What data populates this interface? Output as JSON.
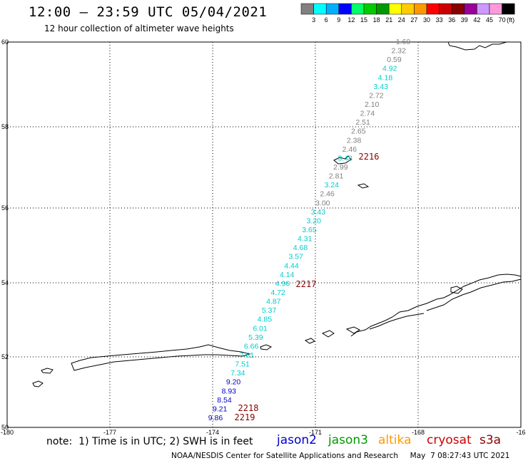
{
  "title": "12:00 – 23:59 UTC 05/04/2021",
  "subtitle": "12 hour collection of altimeter wave heights",
  "note": "note:  1) Time is in UTC; 2) SWH is in feet",
  "credit": "NOAA/NESDIS Center for Satellite Applications and Research     May  7 08:27:43 UTC 2021",
  "satellites": [
    {
      "name": "jason2",
      "color": "#0000cc"
    },
    {
      "name": "jason3",
      "color": "#009900"
    },
    {
      "name": "altika",
      "color": "#ff9900"
    },
    {
      "name": "cryosat",
      "color": "#cc0000"
    },
    {
      "name": "s3a",
      "color": "#880000"
    }
  ],
  "colorbar": {
    "unit": "(ft)",
    "ticks": [
      "3",
      "6",
      "9",
      "12",
      "15",
      "18",
      "21",
      "24",
      "27",
      "30",
      "33",
      "36",
      "39",
      "42",
      "45",
      "70"
    ],
    "colors": [
      "#808080",
      "#00ffff",
      "#00b0ff",
      "#0000ff",
      "#00ff66",
      "#00cc00",
      "#009900",
      "#ffff00",
      "#ffcc00",
      "#ff9900",
      "#ff0000",
      "#cc0000",
      "#880000",
      "#990099",
      "#cc99ff",
      "#ff99dd",
      "#000000"
    ]
  },
  "axes": {
    "lon_labels": [
      "-180",
      "-177",
      "-174",
      "-171",
      "-168",
      "-16"
    ],
    "lat_labels": [
      "50",
      "52",
      "54",
      "56",
      "58",
      "60"
    ]
  },
  "pass_times": [
    "2216",
    "2217",
    "2218",
    "2219"
  ],
  "swh_labels": [
    {
      "value": "1.60",
      "color": "#808080"
    },
    {
      "value": "2.32",
      "color": "#808080"
    },
    {
      "value": "0.59",
      "color": "#808080"
    },
    {
      "value": "4.92",
      "color": "#00cccc"
    },
    {
      "value": "4.18",
      "color": "#00cccc"
    },
    {
      "value": "3.43",
      "color": "#00cccc"
    },
    {
      "value": "2.72",
      "color": "#808080"
    },
    {
      "value": "2.10",
      "color": "#808080"
    },
    {
      "value": "2.74",
      "color": "#808080"
    },
    {
      "value": "2.51",
      "color": "#808080"
    },
    {
      "value": "2.65",
      "color": "#808080"
    },
    {
      "value": "2.38",
      "color": "#808080"
    },
    {
      "value": "2.46",
      "color": "#808080"
    },
    {
      "value": "3.48",
      "color": "#00cccc"
    },
    {
      "value": "2.99",
      "color": "#808080"
    },
    {
      "value": "2.81",
      "color": "#808080"
    },
    {
      "value": "3.24",
      "color": "#00cccc"
    },
    {
      "value": "2.46",
      "color": "#808080"
    },
    {
      "value": "3.00",
      "color": "#808080"
    },
    {
      "value": "3.43",
      "color": "#00cccc"
    },
    {
      "value": "3.20",
      "color": "#00cccc"
    },
    {
      "value": "3.65",
      "color": "#00cccc"
    },
    {
      "value": "4.31",
      "color": "#00cccc"
    },
    {
      "value": "4.68",
      "color": "#00cccc"
    },
    {
      "value": "3.57",
      "color": "#00cccc"
    },
    {
      "value": "4.44",
      "color": "#00cccc"
    },
    {
      "value": "4.14",
      "color": "#00cccc"
    },
    {
      "value": "4.96",
      "color": "#00cccc"
    },
    {
      "value": "4.72",
      "color": "#00cccc"
    },
    {
      "value": "4.87",
      "color": "#00cccc"
    },
    {
      "value": "5.37",
      "color": "#00cccc"
    },
    {
      "value": "4.85",
      "color": "#00cccc"
    },
    {
      "value": "6.01",
      "color": "#00cccc"
    },
    {
      "value": "5.39",
      "color": "#00cccc"
    },
    {
      "value": "6.66",
      "color": "#00cccc"
    },
    {
      "value": "7.81",
      "color": "#00cccc"
    },
    {
      "value": "7.51",
      "color": "#00cccc"
    },
    {
      "value": "7.34",
      "color": "#00cccc"
    },
    {
      "value": "9.20",
      "color": "#0000cc"
    },
    {
      "value": "8.93",
      "color": "#0000cc"
    },
    {
      "value": "8.54",
      "color": "#0000cc"
    },
    {
      "value": "9.21",
      "color": "#0000cc"
    },
    {
      "value": "9.86",
      "color": "#0000cc"
    }
  ]
}
